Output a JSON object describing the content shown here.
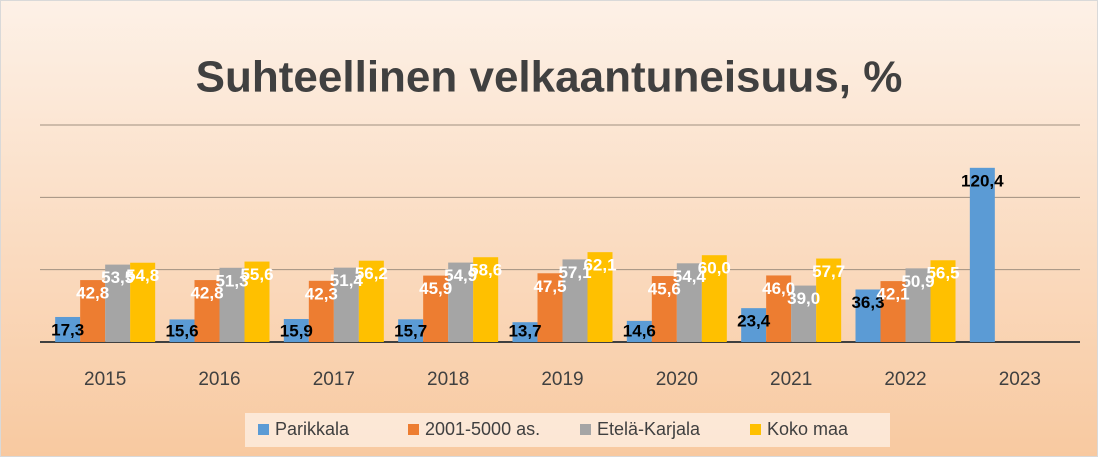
{
  "chart_data": {
    "type": "bar",
    "title": "Suhteellinen velkaantuneisuus, %",
    "categories": [
      "2015",
      "2016",
      "2017",
      "2018",
      "2019",
      "2020",
      "2021",
      "2022",
      "2023"
    ],
    "series": [
      {
        "name": "Parikkala",
        "color": "#5b9bd5",
        "values": [
          17.3,
          15.6,
          15.9,
          15.7,
          13.7,
          14.6,
          23.4,
          36.3,
          120.4
        ],
        "value_labels": [
          "17,3",
          "15,6",
          "15,9",
          "15,7",
          "13,7",
          "14,6",
          "23,4",
          "36,3",
          "120,4"
        ]
      },
      {
        "name": "2001-5000 as.",
        "color": "#ed7d31",
        "values": [
          42.8,
          42.8,
          42.3,
          45.9,
          47.5,
          45.6,
          46.0,
          42.1,
          null
        ],
        "value_labels": [
          "42,8",
          "42,8",
          "42,3",
          "45,9",
          "47,5",
          "45,6",
          "46,0",
          "42,1",
          null
        ]
      },
      {
        "name": "Etelä-Karjala",
        "color": "#a5a5a5",
        "values": [
          53.5,
          51.3,
          51.4,
          54.9,
          57.1,
          54.4,
          39.0,
          50.9,
          null
        ],
        "value_labels": [
          "53,5",
          "51,3",
          "51,4",
          "54,9",
          "57,1",
          "54,4",
          "39,0",
          "50,9",
          null
        ]
      },
      {
        "name": "Koko maa",
        "color": "#ffc000",
        "values": [
          54.8,
          55.6,
          56.2,
          58.6,
          62.1,
          60.0,
          57.7,
          56.5,
          null
        ],
        "value_labels": [
          "54,8",
          "55,6",
          "56,2",
          "58,6",
          "62,1",
          "60,0",
          "57,7",
          "56,5",
          null
        ]
      }
    ],
    "ylim": [
      0,
      150
    ],
    "yticks": [
      0,
      50,
      100,
      150
    ],
    "grid": true,
    "legend": "bottom"
  }
}
